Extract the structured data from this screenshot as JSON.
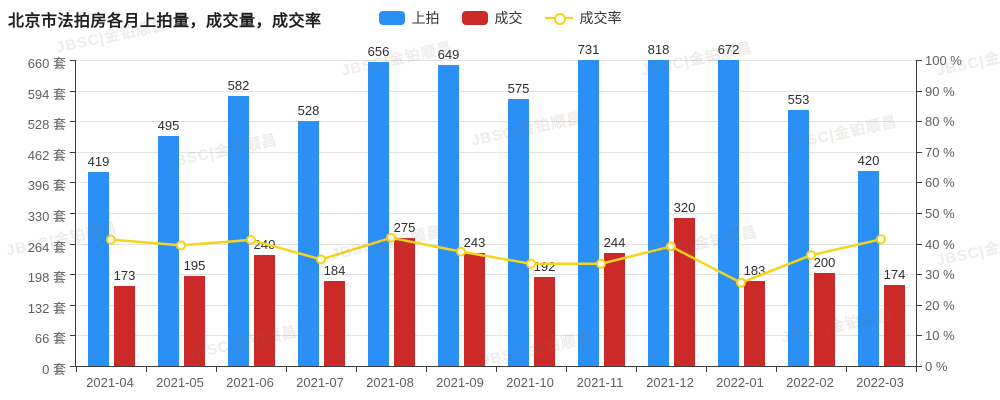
{
  "header": {
    "title": "北京市法拍房各月上拍量，成交量，成交率"
  },
  "watermark": {
    "text": "JBSC|金铂顺昌"
  },
  "chart_data": {
    "type": "bar",
    "title": "北京市法拍房各月上拍量，成交量，成交率",
    "categories": [
      "2021-04",
      "2021-05",
      "2021-06",
      "2021-07",
      "2021-08",
      "2021-09",
      "2021-10",
      "2021-11",
      "2021-12",
      "2022-01",
      "2022-02",
      "2022-03"
    ],
    "series": [
      {
        "name": "上拍",
        "type": "bar",
        "axis": "left",
        "color": "#2b90f5",
        "values": [
          419,
          495,
          582,
          528,
          656,
          649,
          575,
          731,
          818,
          672,
          553,
          420
        ]
      },
      {
        "name": "成交",
        "type": "bar",
        "axis": "left",
        "color": "#cc2a29",
        "values": [
          173,
          195,
          240,
          184,
          275,
          243,
          192,
          244,
          320,
          183,
          200,
          174
        ]
      },
      {
        "name": "成交率",
        "type": "line",
        "axis": "right",
        "color": "#f6d41c",
        "unit": "%",
        "values": [
          41.3,
          39.4,
          41.2,
          34.8,
          41.9,
          37.4,
          33.4,
          33.4,
          39.1,
          27.2,
          36.2,
          41.4
        ]
      }
    ],
    "y_axis_left": {
      "min": 0,
      "max": 660,
      "step": 66,
      "unit": "套",
      "tick_labels": [
        "660 套",
        "594 套",
        "528 套",
        "462 套",
        "396 套",
        "330 套",
        "264 套",
        "198 套",
        "132 套",
        "66 套",
        "0 套"
      ]
    },
    "y_axis_right": {
      "min": 0,
      "max": 100,
      "step": 10,
      "unit": "%",
      "tick_labels": [
        "100 %",
        "90 %",
        "80 %",
        "70 %",
        "60 %",
        "50 %",
        "40 %",
        "30 %",
        "20 %",
        "10 %",
        "0 %"
      ]
    },
    "grid": true,
    "legend_position": "top-center",
    "bars_clipped_at_left_axis_max": true
  }
}
